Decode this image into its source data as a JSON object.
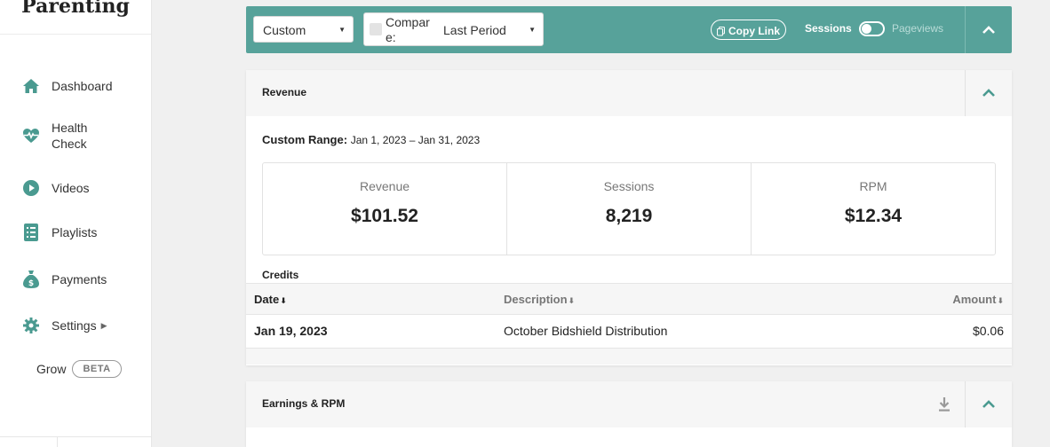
{
  "brand": "Parenting",
  "sidebar": {
    "items": [
      {
        "label": "Dashboard",
        "icon": "home-icon"
      },
      {
        "label": "Health Check",
        "icon": "heartbeat-icon"
      },
      {
        "label": "Videos",
        "icon": "play-circle-icon"
      },
      {
        "label": "Playlists",
        "icon": "list-icon"
      },
      {
        "label": "Payments",
        "icon": "money-bag-icon"
      },
      {
        "label": "Settings",
        "icon": "gear-icon"
      }
    ],
    "grow_label": "Grow",
    "beta_badge": "BETA"
  },
  "toolbar": {
    "range_select": "Custom",
    "compare_label": "Compare:",
    "compare_select": "Last Period",
    "copy_link": "Copy Link",
    "toggle_left": "Sessions",
    "toggle_right": "Pageviews"
  },
  "revenue_panel": {
    "title": "Revenue",
    "range_label": "Custom Range:",
    "range_value": "Jan 1, 2023 – Jan 31, 2023",
    "stats": [
      {
        "label": "Revenue",
        "value": "$101.52"
      },
      {
        "label": "Sessions",
        "value": "8,219"
      },
      {
        "label": "RPM",
        "value": "$12.34"
      }
    ],
    "credits_title": "Credits",
    "columns": {
      "date": "Date",
      "description": "Description",
      "amount": "Amount"
    },
    "rows": [
      {
        "date": "Jan 19, 2023",
        "description": "October Bidshield Distribution",
        "amount": "$0.06"
      }
    ]
  },
  "earnings_panel": {
    "title": "Earnings & RPM"
  },
  "colors": {
    "accent": "#57a29a",
    "sidebar_icon": "#4a9a90"
  }
}
